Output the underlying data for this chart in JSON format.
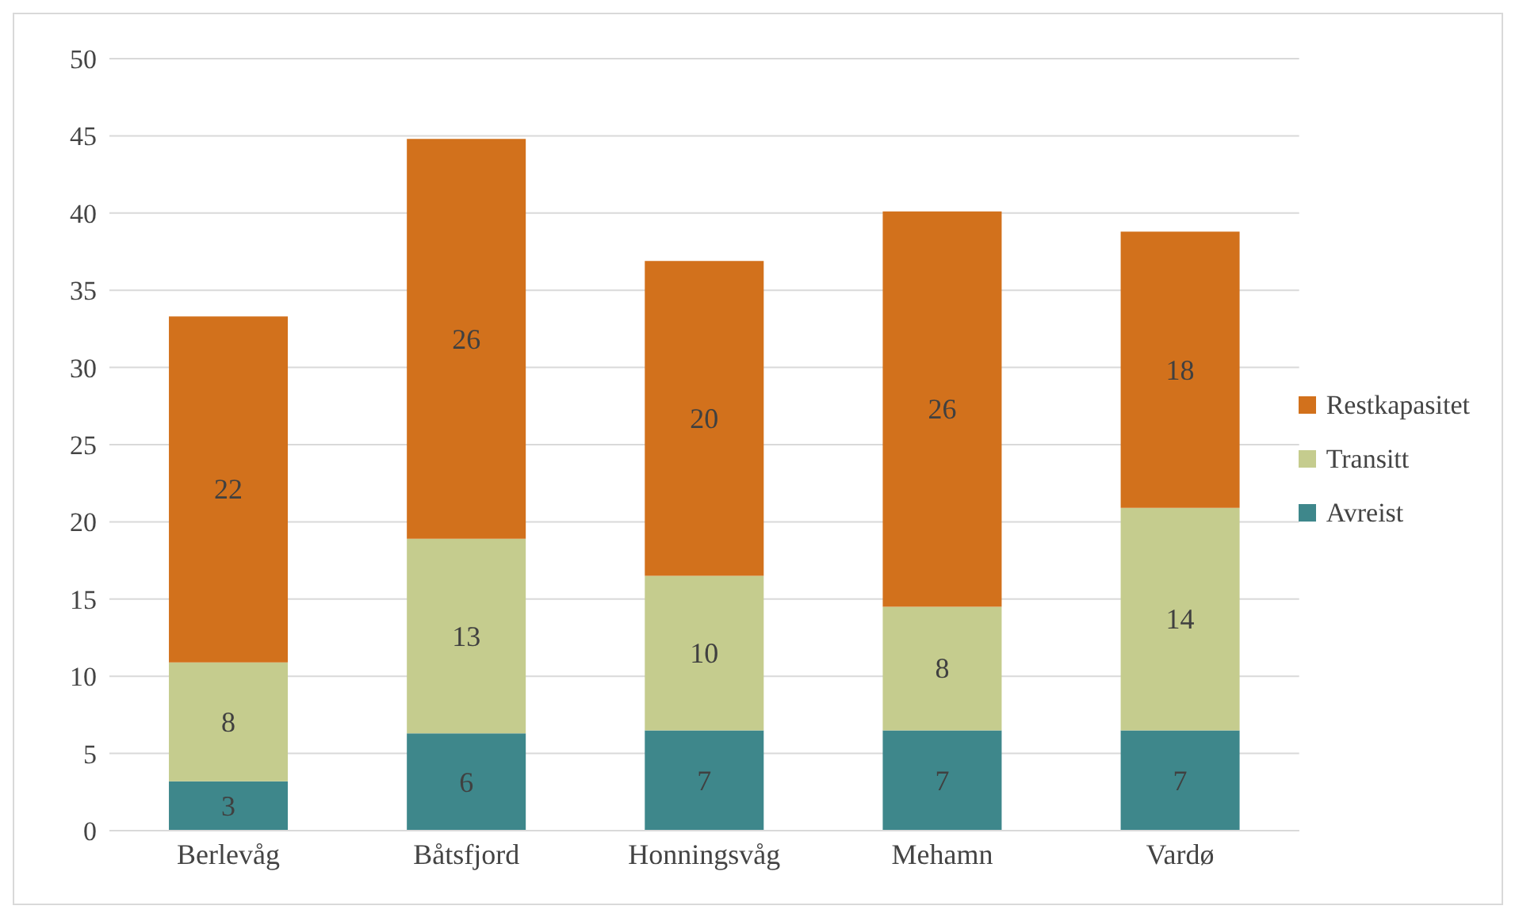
{
  "chart_data": {
    "type": "bar",
    "stacked": true,
    "categories": [
      "Berlevåg",
      "Båtsfjord",
      "Honningsvåg",
      "Mehamn",
      "Vardø"
    ],
    "series": [
      {
        "name": "Avreist",
        "color": "#3e878b",
        "values": [
          3.2,
          6.3,
          6.5,
          6.5,
          6.5
        ],
        "value_labels": [
          "3",
          "6",
          "7",
          "7",
          "7"
        ]
      },
      {
        "name": "Transitt",
        "color": "#c5cc8e",
        "values": [
          7.7,
          12.6,
          10.0,
          8.0,
          14.4
        ],
        "value_labels": [
          "8",
          "13",
          "10",
          "8",
          "14"
        ]
      },
      {
        "name": "Restkapasitet",
        "color": "#d2711c",
        "values": [
          22.4,
          25.9,
          20.4,
          25.6,
          17.9
        ],
        "value_labels": [
          "22",
          "26",
          "20",
          "26",
          "18"
        ]
      }
    ],
    "ylim": [
      0,
      50
    ],
    "yticks": [
      0,
      5,
      10,
      15,
      20,
      25,
      30,
      35,
      40,
      45,
      50
    ],
    "grid": "y",
    "legend": "right"
  }
}
